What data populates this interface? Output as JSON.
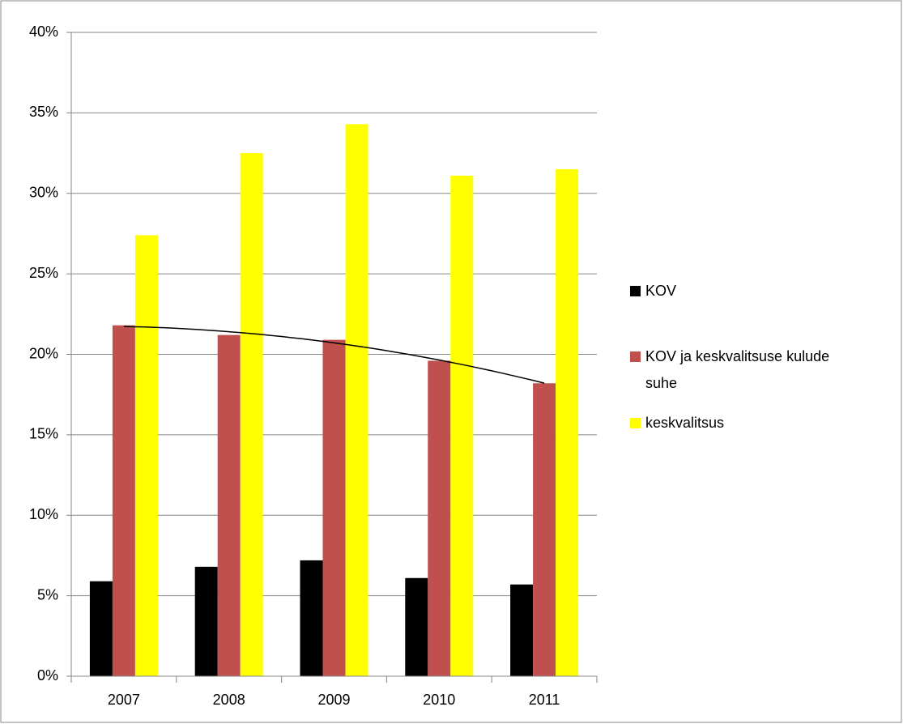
{
  "chart_data": {
    "type": "bar",
    "categories": [
      "2007",
      "2008",
      "2009",
      "2010",
      "2011"
    ],
    "series": [
      {
        "name": "KOV",
        "color": "#000000",
        "values": [
          5.9,
          6.8,
          7.2,
          6.1,
          5.7
        ]
      },
      {
        "name": "KOV ja keskvalitsuse kulude suhe",
        "color": "#c0504d",
        "values": [
          21.8,
          21.2,
          20.9,
          19.6,
          18.2
        ]
      },
      {
        "name": "keskvalitsus",
        "color": "#ffff00",
        "values": [
          27.4,
          32.5,
          34.3,
          31.1,
          31.5
        ]
      }
    ],
    "ylim": [
      0,
      40
    ],
    "yticks": [
      {
        "value": 0,
        "label": "0%"
      },
      {
        "value": 5,
        "label": "5%"
      },
      {
        "value": 10,
        "label": "10%"
      },
      {
        "value": 15,
        "label": "15%"
      },
      {
        "value": 20,
        "label": "20%"
      },
      {
        "value": 25,
        "label": "25%"
      },
      {
        "value": 30,
        "label": "30%"
      },
      {
        "value": 35,
        "label": "35%"
      },
      {
        "value": 40,
        "label": "40%"
      }
    ],
    "grid": true,
    "legend": "right",
    "trendline": {
      "series": 1,
      "order": 2
    }
  }
}
